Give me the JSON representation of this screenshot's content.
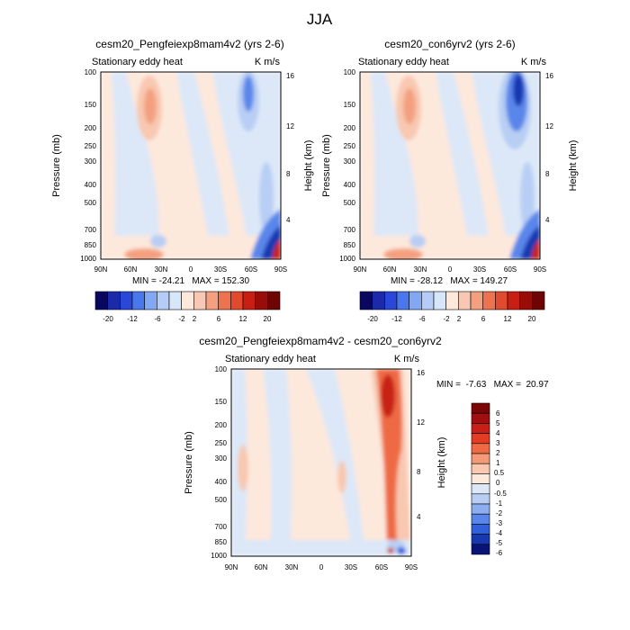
{
  "figure_title": "JJA",
  "chart_data": [
    {
      "type": "heatmap",
      "title": "cesm20_Pengfeiexp8mam4v2 (yrs 2-6)",
      "subtitle_left": "Stationary eddy heat",
      "subtitle_right": "K m/s",
      "ylabel": "Pressure (mb)",
      "ylabel_right": "Height (km)",
      "x_ticks": [
        "90N",
        "60N",
        "30N",
        "0",
        "30S",
        "60S",
        "90S"
      ],
      "y_ticks": [
        "100",
        "150",
        "200",
        "250",
        "300",
        "400",
        "500",
        "700",
        "850",
        "1000"
      ],
      "y_ticks_right": [
        "16",
        "12",
        "8",
        "4"
      ],
      "min_max_text": "MIN = -24.21   MAX = 152.30",
      "colorbar_labels": [
        "-20",
        "-12",
        "-6",
        "-2",
        "2",
        "6",
        "12",
        "20"
      ]
    },
    {
      "type": "heatmap",
      "title": "cesm20_con6yrv2 (yrs 2-6)",
      "subtitle_left": "Stationary eddy heat",
      "subtitle_right": "K m/s",
      "ylabel": "Pressure (mb)",
      "ylabel_right": "Height (km)",
      "x_ticks": [
        "90N",
        "60N",
        "30N",
        "0",
        "30S",
        "60S",
        "90S"
      ],
      "y_ticks": [
        "100",
        "150",
        "200",
        "250",
        "300",
        "400",
        "500",
        "700",
        "850",
        "1000"
      ],
      "y_ticks_right": [
        "16",
        "12",
        "8",
        "4"
      ],
      "min_max_text": "MIN = -28.12   MAX = 149.27",
      "colorbar_labels": [
        "-20",
        "-12",
        "-6",
        "-2",
        "2",
        "6",
        "12",
        "20"
      ]
    },
    {
      "type": "heatmap",
      "title": "cesm20_Pengfeiexp8mam4v2 - cesm20_con6yrv2",
      "subtitle_left": "Stationary eddy heat",
      "subtitle_right": "K m/s",
      "ylabel": "Pressure (mb)",
      "ylabel_right": "Height (km)",
      "x_ticks": [
        "90N",
        "60N",
        "30N",
        "0",
        "30S",
        "60S",
        "90S"
      ],
      "y_ticks": [
        "100",
        "150",
        "200",
        "250",
        "300",
        "400",
        "500",
        "700",
        "850",
        "1000"
      ],
      "y_ticks_right": [
        "16",
        "12",
        "8",
        "4"
      ],
      "min_max_text": "MIN =  -7.63   MAX =  20.97",
      "colorbar_labels": [
        "6",
        "5",
        "4",
        "3",
        "2",
        "1",
        "0.5",
        "0",
        "-0.5",
        "-1",
        "-2",
        "-3",
        "-4",
        "-5",
        "-6"
      ]
    }
  ],
  "colors": {
    "h_colorbar": [
      "#08085e",
      "#1a2aa8",
      "#2a48d8",
      "#4a78ec",
      "#82a8f4",
      "#b4ccf6",
      "#d8e6fa",
      "#fde8dc",
      "#f8c8b4",
      "#f4a080",
      "#ec7250",
      "#e04a2e",
      "#c81e14",
      "#9a0c08",
      "#6e0404"
    ],
    "v_colorbar": [
      "#7a0606",
      "#a01010",
      "#c82018",
      "#e23c24",
      "#ee6a44",
      "#f49a76",
      "#f8c8b0",
      "#fde8dc",
      "#dce8f8",
      "#b8cef4",
      "#8caef0",
      "#5a86ea",
      "#3060dc",
      "#1838b0",
      "#0a1478"
    ],
    "light_blue": "#dce8f8",
    "light_pink": "#fde8dc",
    "pink": "#f8c8b0",
    "salmon": "#f4a080",
    "red": "#e04a2e",
    "blue": "#3a64dc",
    "dark_blue": "#1a30a0"
  }
}
